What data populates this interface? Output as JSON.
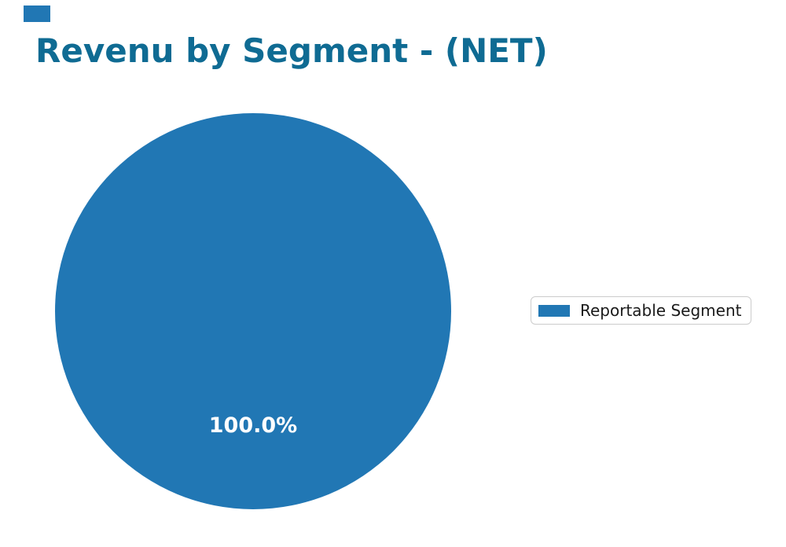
{
  "window": {
    "background": "#ffffff"
  },
  "decor": {
    "corner_square_color": "#2177b4"
  },
  "chart_data": {
    "type": "pie",
    "title": "Revenu by Segment - (NET)",
    "title_color": "#0f6b93",
    "categories": [
      "Reportable Segment"
    ],
    "values": [
      100.0
    ],
    "slices": [
      {
        "label": "Reportable Segment",
        "value": 100.0,
        "percent": "100.0%",
        "color": "#2177b4"
      }
    ],
    "inside_label_color": "#ffffff",
    "legend": {
      "position": "center-right",
      "border_color": "#cccccc",
      "entries": [
        {
          "label": "Reportable Segment",
          "swatch_color": "#2177b4"
        }
      ]
    }
  }
}
